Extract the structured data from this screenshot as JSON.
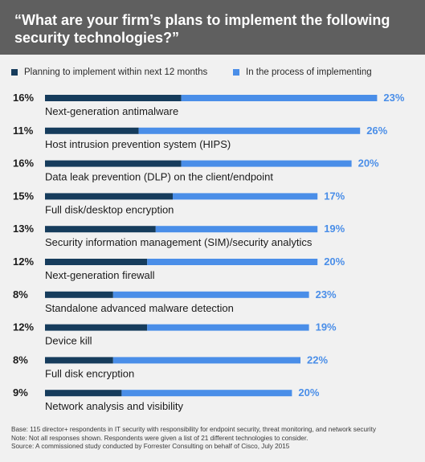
{
  "header": {
    "title": "“What are your firm’s plans to implement the following security technologies?”"
  },
  "colors": {
    "planning": "#163c5c",
    "in_process": "#4a8ee8",
    "header_bg": "#5f5f5f",
    "background": "#f1f1f1"
  },
  "chart_data": {
    "type": "bar",
    "orientation": "horizontal",
    "stacked": true,
    "legend_placement": "top",
    "grid": false,
    "categories": [
      "Next-generation antimalware",
      "Host intrusion prevention system (HIPS)",
      "Data leak prevention (DLP) on the client/endpoint",
      "Full disk/desktop encryption",
      "Security information management (SIM)/security analytics",
      "Next-generation firewall",
      "Standalone advanced malware detection",
      "Device kill",
      "Full disk encryption",
      "Network analysis and visibility"
    ],
    "series": [
      {
        "name": "Planning to implement within next 12 months",
        "values": [
          16,
          11,
          16,
          15,
          13,
          12,
          8,
          12,
          8,
          9
        ],
        "labels": [
          "16%",
          "11%",
          "16%",
          "15%",
          "13%",
          "12%",
          "8%",
          "12%",
          "8%",
          "9%"
        ]
      },
      {
        "name": "In the process of implementing",
        "values": [
          23,
          26,
          20,
          17,
          19,
          20,
          23,
          19,
          22,
          20
        ],
        "labels": [
          "23%",
          "26%",
          "20%",
          "17%",
          "19%",
          "20%",
          "23%",
          "19%",
          "22%",
          "20%"
        ]
      }
    ]
  },
  "footnotes": [
    "Base: 115 director+ respondents in IT security with responsibility for endpoint security, threat monitoring, and network security",
    "Note: Not all responses shown. Respondents were given a list of 21 different technologies to consider.",
    "Source: A commissioned study conducted by Forrester Consulting on behalf of Cisco, July 2015"
  ]
}
